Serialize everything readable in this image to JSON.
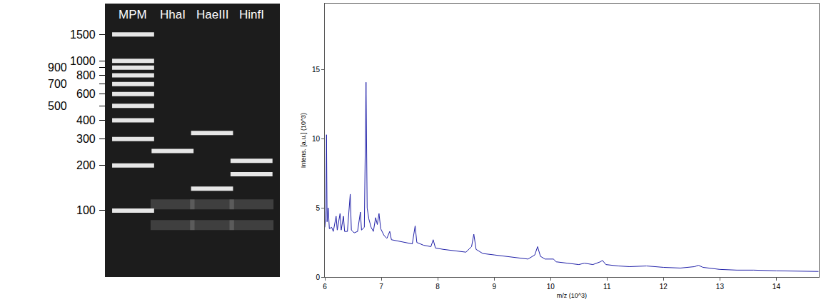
{
  "chart_data": [
    {
      "type": "gel",
      "categories": [
        "MPM",
        "HhaI",
        "HaeIII",
        "HinfI"
      ],
      "bands": [
        [
          100,
          200,
          300,
          400,
          500,
          600,
          700,
          800,
          900,
          1000,
          1500
        ],
        [
          250
        ],
        [
          330,
          140
        ],
        [
          215,
          175
        ]
      ],
      "faint_bands": [
        [],
        [
          110,
          80
        ],
        [
          110,
          80
        ],
        [
          110,
          80
        ]
      ],
      "color": "#e6e6e6",
      "log": "y",
      "ylim": [
        36,
        2410
      ],
      "yticks": [
        1500,
        1000,
        900,
        800,
        700,
        600,
        500,
        400,
        300,
        200,
        100
      ]
    },
    {
      "type": "line",
      "x": [
        6.0,
        6.02,
        6.03,
        6.04,
        6.06,
        6.08,
        6.12,
        6.15,
        6.2,
        6.22,
        6.27,
        6.29,
        6.33,
        6.35,
        6.4,
        6.45,
        6.47,
        6.52,
        6.58,
        6.63,
        6.65,
        6.7,
        6.73,
        6.75,
        6.78,
        6.82,
        6.86,
        6.9,
        6.93,
        6.96,
        6.99,
        7.05,
        7.1,
        7.15,
        7.18,
        7.3,
        7.45,
        7.55,
        7.6,
        7.63,
        7.75,
        7.88,
        7.92,
        7.96,
        8.1,
        8.3,
        8.5,
        8.6,
        8.64,
        8.68,
        8.8,
        9.0,
        9.2,
        9.4,
        9.6,
        9.72,
        9.77,
        9.82,
        9.9,
        10.05,
        10.1,
        10.3,
        10.5,
        10.6,
        10.75,
        10.88,
        10.92,
        10.98,
        11.2,
        11.4,
        11.7,
        12.0,
        12.3,
        12.55,
        12.62,
        12.7,
        13.0,
        13.3,
        13.6,
        14.0,
        14.3,
        14.75
      ],
      "values": [
        3.6,
        4.8,
        10.3,
        4.0,
        5.0,
        3.5,
        3.6,
        3.3,
        4.4,
        3.4,
        4.6,
        3.4,
        4.4,
        3.3,
        3.3,
        6.0,
        3.4,
        3.2,
        3.3,
        4.7,
        3.4,
        3.6,
        14.1,
        5.0,
        4.2,
        3.6,
        3.3,
        4.3,
        3.8,
        4.6,
        3.5,
        3.0,
        2.8,
        3.3,
        2.7,
        2.6,
        2.5,
        2.4,
        3.7,
        2.5,
        2.3,
        2.2,
        2.7,
        2.1,
        2.0,
        1.9,
        1.8,
        2.2,
        3.1,
        2.0,
        1.7,
        1.6,
        1.5,
        1.4,
        1.3,
        1.6,
        2.2,
        1.5,
        1.3,
        1.3,
        1.1,
        1.0,
        0.9,
        1.0,
        0.9,
        1.1,
        1.2,
        0.9,
        0.8,
        0.75,
        0.8,
        0.7,
        0.65,
        0.75,
        0.85,
        0.7,
        0.55,
        0.5,
        0.5,
        0.45,
        0.42,
        0.4
      ],
      "color": "#1f1fa8",
      "x_label": "m/z (10^3)",
      "y_label": "Intens. [a.u.] (10^3)",
      "xlim": [
        6,
        14.75
      ],
      "xticks": [
        6,
        7,
        8,
        9,
        10,
        11,
        12,
        13,
        14
      ],
      "ylim": [
        0,
        19.8
      ],
      "yticks": [
        0,
        5,
        10,
        15
      ],
      "grid": false
    }
  ]
}
